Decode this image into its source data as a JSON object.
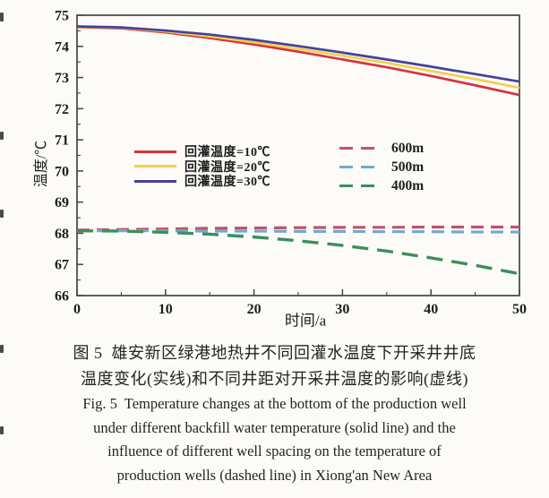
{
  "figure": {
    "caption_cn_line1": "图 5  雄安新区绿港地热井不同回灌水温度下开采井井底",
    "caption_cn_line2": "温度变化(实线)和不同井距对开采井温度的影响(虚线)",
    "caption_en_line1": "Fig. 5  Temperature changes at the bottom of the production well",
    "caption_en_line2": "under different backfill water temperature (solid line) and the",
    "caption_en_line3": "influence of different well spacing on the temperature of",
    "caption_en_line4": "production wells (dashed line) in Xiong'an New Area"
  },
  "chart_data": {
    "type": "line",
    "title": "",
    "xlabel": "时间/a",
    "ylabel": "温度/℃",
    "xlim": [
      0,
      50
    ],
    "ylim": [
      66,
      75
    ],
    "x_ticks": [
      0,
      10,
      20,
      30,
      40,
      50
    ],
    "y_ticks": [
      66,
      67,
      68,
      69,
      70,
      71,
      72,
      73,
      74,
      75
    ],
    "x_minor_step": 5,
    "y_minor_step": 0.5,
    "grid": false,
    "frame_color": "#454545",
    "legend_position": "inside middle, two columns",
    "x": [
      0,
      5,
      10,
      15,
      20,
      25,
      30,
      35,
      40,
      45,
      50
    ],
    "series": [
      {
        "name": "回灌温度=10℃",
        "style": "solid",
        "color": "#d8323e",
        "width": 2.7,
        "dash": "",
        "values": [
          74.62,
          74.58,
          74.45,
          74.27,
          74.06,
          73.83,
          73.58,
          73.33,
          73.05,
          72.75,
          72.44
        ]
      },
      {
        "name": "回灌温度=20℃",
        "style": "solid",
        "color": "#f4d04a",
        "width": 2.7,
        "dash": "",
        "values": [
          74.63,
          74.6,
          74.48,
          74.32,
          74.13,
          73.92,
          73.7,
          73.47,
          73.21,
          72.95,
          72.67
        ]
      },
      {
        "name": "回灌温度=30℃",
        "style": "solid",
        "color": "#44419f",
        "width": 2.7,
        "dash": "",
        "values": [
          74.64,
          74.61,
          74.51,
          74.38,
          74.21,
          74.01,
          73.8,
          73.58,
          73.35,
          73.11,
          72.87
        ]
      },
      {
        "name": "600m",
        "style": "dashed",
        "color": "#c25266",
        "width": 3.2,
        "dash": "14 8",
        "values": [
          68.1,
          68.12,
          68.14,
          68.16,
          68.17,
          68.18,
          68.19,
          68.19,
          68.2,
          68.2,
          68.2
        ]
      },
      {
        "name": "500m",
        "style": "dashed",
        "color": "#72a9cc",
        "width": 3.2,
        "dash": "14 8",
        "values": [
          68.08,
          68.08,
          68.08,
          68.07,
          68.07,
          68.06,
          68.06,
          68.05,
          68.05,
          68.04,
          68.04
        ]
      },
      {
        "name": "400m",
        "style": "dashed",
        "color": "#3c8e5c",
        "width": 3.4,
        "dash": "18 10",
        "values": [
          68.08,
          68.07,
          68.03,
          67.97,
          67.88,
          67.76,
          67.61,
          67.43,
          67.21,
          66.97,
          66.7
        ]
      }
    ]
  }
}
